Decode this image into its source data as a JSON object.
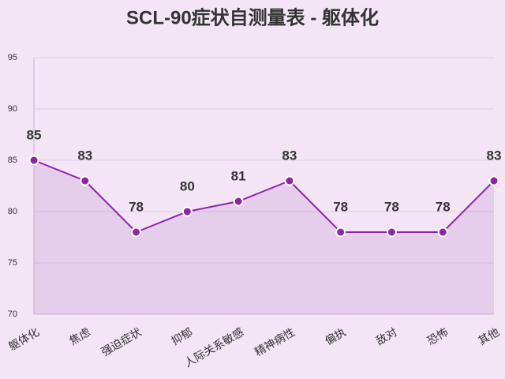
{
  "chart_data": {
    "type": "line",
    "title": "SCL-90症状自测量表 - 躯体化",
    "categories": [
      "躯体化",
      "焦虑",
      "强迫症状",
      "抑郁",
      "人际关系敏感",
      "精神病性",
      "偏执",
      "敌对",
      "恐怖",
      "其他"
    ],
    "values": [
      85,
      83,
      78,
      80,
      81,
      83,
      78,
      78,
      78,
      83
    ],
    "color": "#8e24aa",
    "area": true,
    "ylim": [
      70,
      95
    ],
    "yticks": [
      70,
      75,
      80,
      85,
      90,
      95
    ],
    "grid": true
  }
}
